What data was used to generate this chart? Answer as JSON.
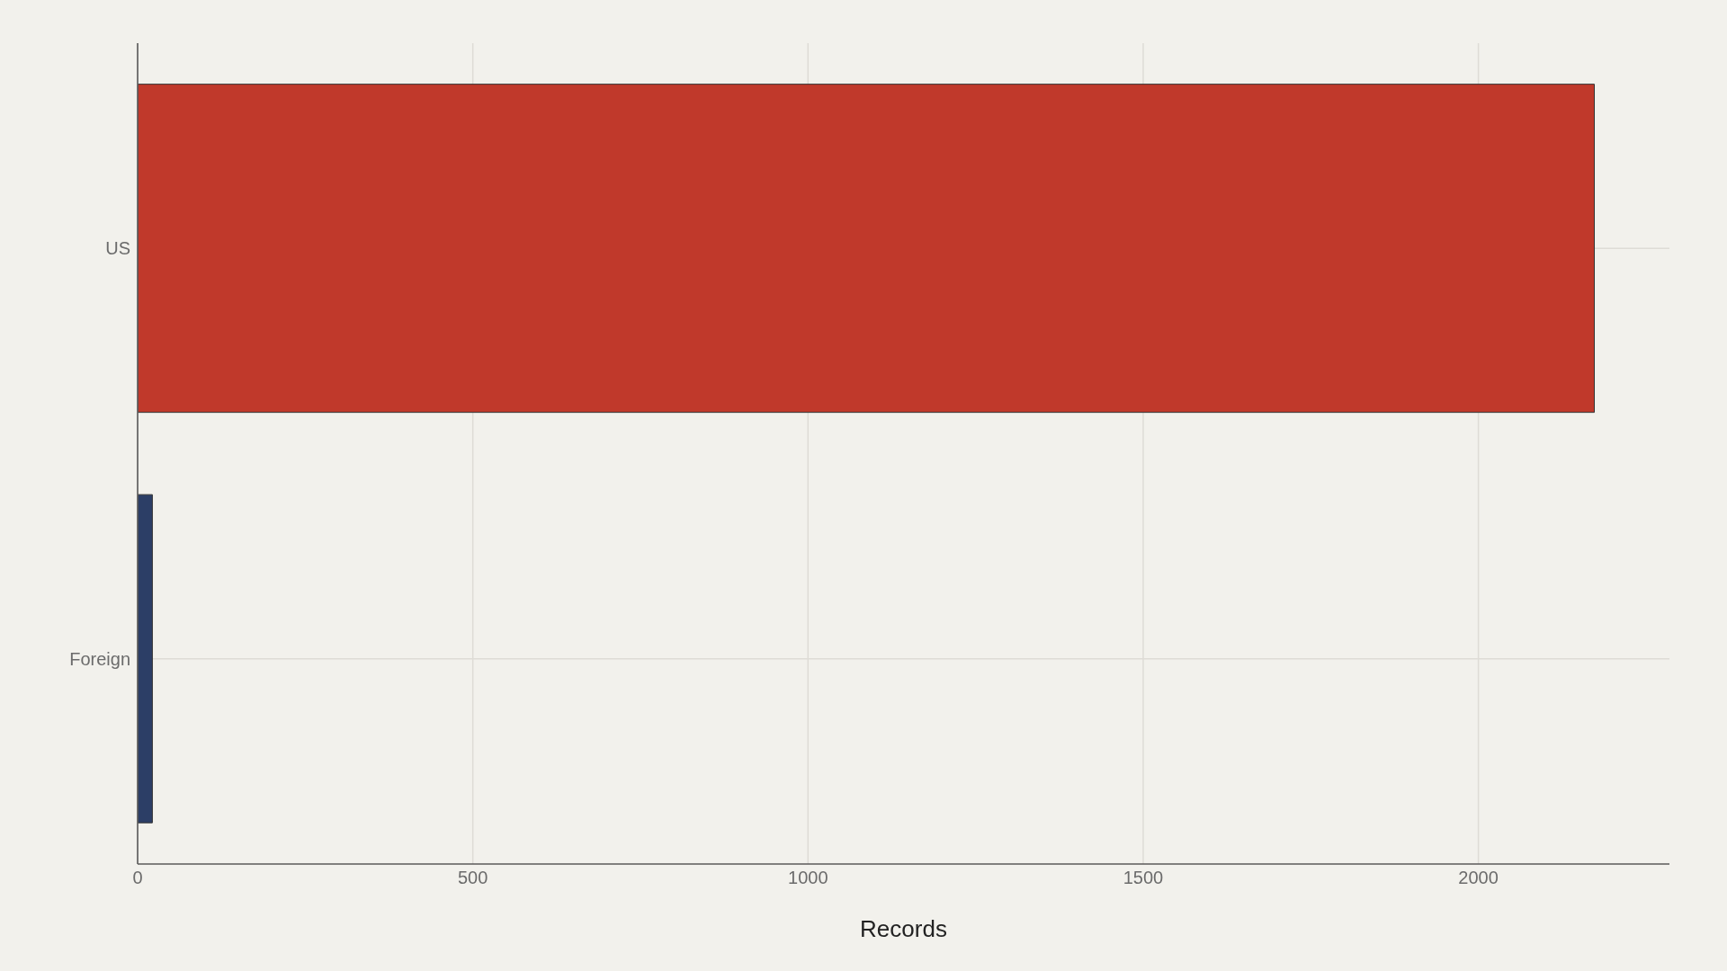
{
  "chart_data": {
    "type": "bar",
    "orientation": "horizontal",
    "categories": [
      "US",
      "Foreign"
    ],
    "values": [
      2173,
      22
    ],
    "colors": [
      "#c0392b",
      "#2c3e66"
    ],
    "xlabel": "Records",
    "xlim": [
      0,
      2285
    ],
    "xticks": [
      0,
      500,
      1000,
      1500,
      2000
    ],
    "grid": true
  }
}
